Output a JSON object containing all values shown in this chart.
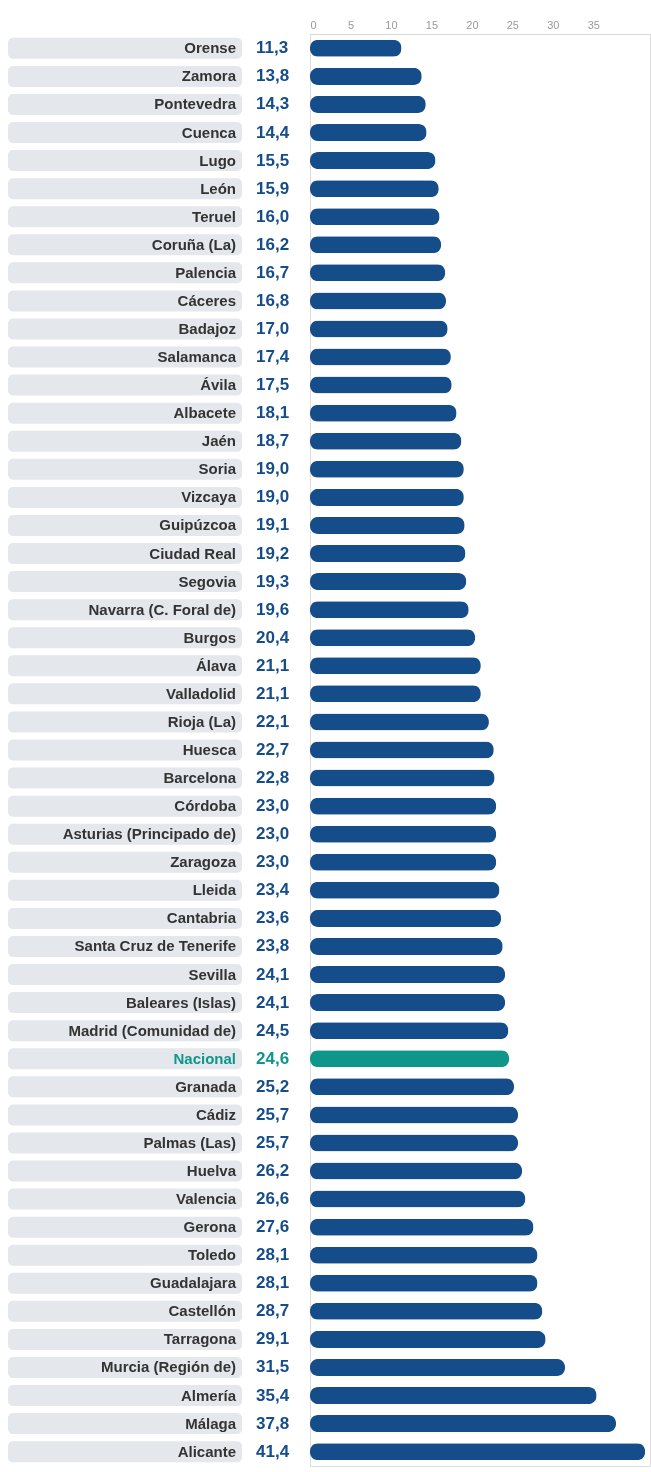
{
  "chart_data": {
    "type": "bar",
    "orientation": "horizontal",
    "categories": [
      "Orense",
      "Zamora",
      "Pontevedra",
      "Cuenca",
      "Lugo",
      "León",
      "Teruel",
      "Coruña (La)",
      "Palencia",
      "Cáceres",
      "Badajoz",
      "Salamanca",
      "Ávila",
      "Albacete",
      "Jaén",
      "Soria",
      "Vizcaya",
      "Guipúzcoa",
      "Ciudad Real",
      "Segovia",
      "Navarra (C. Foral de)",
      "Burgos",
      "Álava",
      "Valladolid",
      "Rioja (La)",
      "Huesca",
      "Barcelona",
      "Córdoba",
      "Asturias (Principado de)",
      "Zaragoza",
      "Lleida",
      "Cantabria",
      "Santa Cruz de Tenerife",
      "Sevilla",
      "Baleares (Islas)",
      "Madrid (Comunidad de)",
      "Nacional",
      "Granada",
      "Cádiz",
      "Palmas (Las)",
      "Huelva",
      "Valencia",
      "Gerona",
      "Toledo",
      "Guadalajara",
      "Castellón",
      "Tarragona",
      "Murcia (Región de)",
      "Almería",
      "Málaga",
      "Alicante"
    ],
    "values": [
      11.3,
      13.8,
      14.3,
      14.4,
      15.5,
      15.9,
      16.0,
      16.2,
      16.7,
      16.8,
      17.0,
      17.4,
      17.5,
      18.1,
      18.7,
      19.0,
      19.0,
      19.1,
      19.2,
      19.3,
      19.6,
      20.4,
      21.1,
      21.1,
      22.1,
      22.7,
      22.8,
      23.0,
      23.0,
      23.0,
      23.4,
      23.6,
      23.8,
      24.1,
      24.1,
      24.5,
      24.6,
      25.2,
      25.7,
      25.7,
      26.2,
      26.6,
      27.6,
      28.1,
      28.1,
      28.7,
      29.1,
      31.5,
      35.4,
      37.8,
      41.4
    ],
    "value_labels": [
      "11,3",
      "13,8",
      "14,3",
      "14,4",
      "15,5",
      "15,9",
      "16,0",
      "16,2",
      "16,7",
      "16,8",
      "17,0",
      "17,4",
      "17,5",
      "18,1",
      "18,7",
      "19,0",
      "19,0",
      "19,1",
      "19,2",
      "19,3",
      "19,6",
      "20,4",
      "21,1",
      "21,1",
      "22,1",
      "22,7",
      "22,8",
      "23,0",
      "23,0",
      "23,0",
      "23,4",
      "23,6",
      "23,8",
      "24,1",
      "24,1",
      "24,5",
      "24,6",
      "25,2",
      "25,7",
      "25,7",
      "26,2",
      "26,6",
      "27,6",
      "28,1",
      "28,1",
      "28,7",
      "29,1",
      "31,5",
      "35,4",
      "37,8",
      "41,4"
    ],
    "colors": [
      "#154c8a",
      "#154c8a",
      "#154c8a",
      "#154c8a",
      "#154c8a",
      "#154c8a",
      "#154c8a",
      "#154c8a",
      "#154c8a",
      "#154c8a",
      "#154c8a",
      "#154c8a",
      "#154c8a",
      "#154c8a",
      "#154c8a",
      "#154c8a",
      "#154c8a",
      "#154c8a",
      "#154c8a",
      "#154c8a",
      "#154c8a",
      "#154c8a",
      "#154c8a",
      "#154c8a",
      "#154c8a",
      "#154c8a",
      "#154c8a",
      "#154c8a",
      "#154c8a",
      "#154c8a",
      "#154c8a",
      "#154c8a",
      "#154c8a",
      "#154c8a",
      "#154c8a",
      "#154c8a",
      "#0e968a",
      "#154c8a",
      "#154c8a",
      "#154c8a",
      "#154c8a",
      "#154c8a",
      "#154c8a",
      "#154c8a",
      "#154c8a",
      "#154c8a",
      "#154c8a",
      "#154c8a",
      "#154c8a",
      "#154c8a",
      "#154c8a"
    ],
    "xlim": [
      0,
      42
    ],
    "xticks": [
      0,
      5,
      10,
      15,
      20,
      25,
      30,
      35
    ],
    "grid": false
  }
}
